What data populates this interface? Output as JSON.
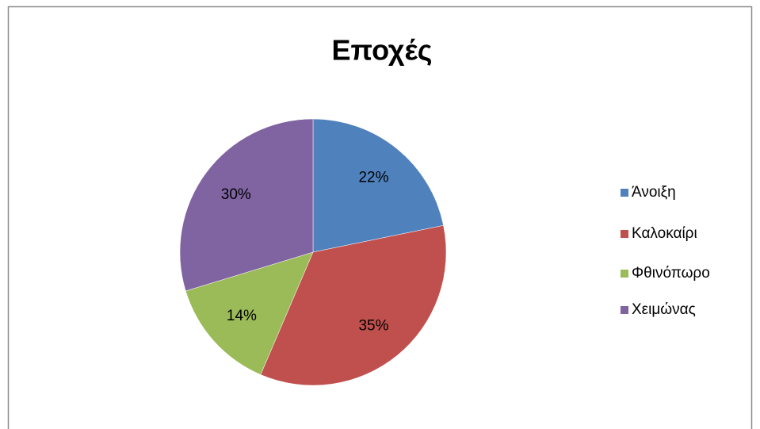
{
  "chart_data": {
    "type": "pie",
    "title": "Εποχές",
    "categories": [
      "Άνοιξη",
      "Καλοκαίρι",
      "Φθινόπωρο",
      "Χειμώνας"
    ],
    "values": [
      22,
      35,
      14,
      30
    ],
    "value_labels": [
      "22%",
      "35%",
      "14%",
      "30%"
    ],
    "colors": [
      "#4f81bd",
      "#c0504d",
      "#9bbb59",
      "#8064a2"
    ],
    "legend": "right"
  }
}
